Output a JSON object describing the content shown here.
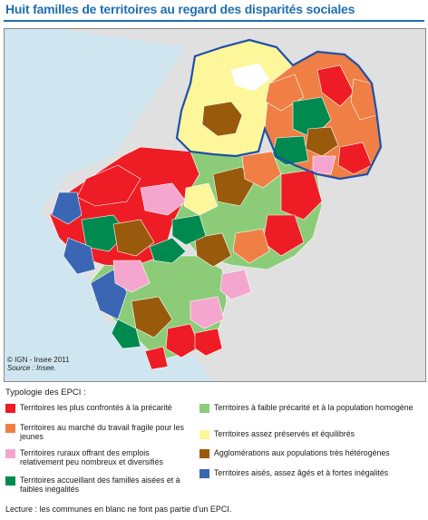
{
  "title": "Huit familles de territoires au regard des disparités sociales",
  "map": {
    "credit": "© IGN - Insee 2011",
    "source": "Source : Insee."
  },
  "legend": {
    "title": "Typologie des EPCI :",
    "items": [
      {
        "label": "Territoires les plus confrontés à la précarité",
        "color": "#ee1c24"
      },
      {
        "label": "Territoires au marché du travail fragile pour les jeunes",
        "color": "#f07f45"
      },
      {
        "label": "Territoires ruraux offrant des emplois relativement peu nombreux et diversifiés",
        "color": "#f4a6cf"
      },
      {
        "label": "Territoires accueillant des familles aisées et à faibles inégalités",
        "color": "#008a50"
      },
      {
        "label": "Territoires à faible précarité et à la population homogène",
        "color": "#8ccc78"
      },
      {
        "label": "Territoires assez préservés et équilibrés",
        "color": "#fdf69a"
      },
      {
        "label": "Agglomérations aux populations très hétérogènes",
        "color": "#9a5a0c"
      },
      {
        "label": "Territoires aisés, assez âgés et à fortes inégalités",
        "color": "#3a66b4"
      }
    ]
  },
  "note": "Lecture : les communes en blanc ne font pas partie d'un EPCI."
}
